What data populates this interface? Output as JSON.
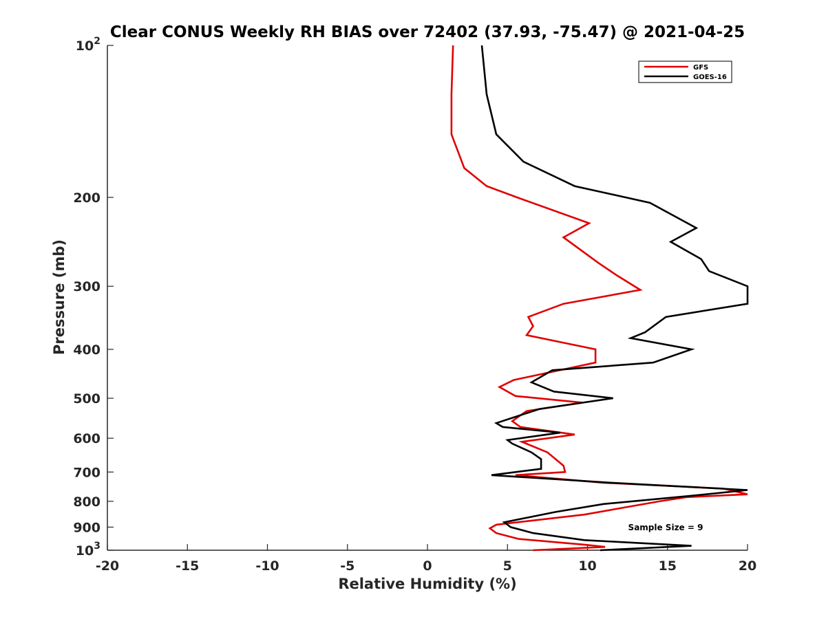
{
  "chart_data": {
    "type": "line",
    "title": "Clear CONUS Weekly RH BIAS over 72402 (37.93, -75.47) @ 2021-04-25",
    "xlabel": "Relative Humidity (%)",
    "ylabel": "Pressure (mb)",
    "xlim": [
      -20,
      20
    ],
    "ylim": [
      100,
      1000
    ],
    "yscale": "log",
    "yreversed": true,
    "grid": false,
    "legend_position": "top-right",
    "x_ticks": [
      "-20",
      "-15",
      "-10",
      "-5",
      "0",
      "5",
      "10",
      "15",
      "20"
    ],
    "y_ticks": [
      {
        "value": 100,
        "base": "10",
        "exp": "2"
      },
      {
        "value": 200,
        "label": "200"
      },
      {
        "value": 300,
        "label": "300"
      },
      {
        "value": 400,
        "label": "400"
      },
      {
        "value": 500,
        "label": "500"
      },
      {
        "value": 600,
        "label": "600"
      },
      {
        "value": 700,
        "label": "700"
      },
      {
        "value": 800,
        "label": "800"
      },
      {
        "value": 900,
        "label": "900"
      },
      {
        "value": 1000,
        "base": "10",
        "exp": "3"
      }
    ],
    "annotation": "Sample Size = 9",
    "series": [
      {
        "name": "GFS",
        "color": "#e00000",
        "points": [
          [
            1.6,
            100
          ],
          [
            1.5,
            125
          ],
          [
            1.5,
            150
          ],
          [
            2.3,
            175
          ],
          [
            3.7,
            190
          ],
          [
            5.6,
            200
          ],
          [
            10.1,
            225
          ],
          [
            8.5,
            240
          ],
          [
            10.7,
            270
          ],
          [
            11.8,
            285
          ],
          [
            13.3,
            305
          ],
          [
            8.5,
            325
          ],
          [
            6.3,
            345
          ],
          [
            6.6,
            360
          ],
          [
            6.2,
            375
          ],
          [
            10.5,
            400
          ],
          [
            10.5,
            425
          ],
          [
            5.4,
            460
          ],
          [
            4.5,
            475
          ],
          [
            5.5,
            495
          ],
          [
            9.7,
            510
          ],
          [
            6.2,
            530
          ],
          [
            5.3,
            555
          ],
          [
            5.8,
            570
          ],
          [
            9.2,
            590
          ],
          [
            5.9,
            610
          ],
          [
            7.5,
            640
          ],
          [
            8.5,
            680
          ],
          [
            8.6,
            700
          ],
          [
            5.5,
            710
          ],
          [
            11.0,
            735
          ],
          [
            18.5,
            755
          ],
          [
            20.0,
            775
          ],
          [
            16.2,
            785
          ],
          [
            14.5,
            800
          ],
          [
            9.8,
            850
          ],
          [
            4.3,
            890
          ],
          [
            3.9,
            905
          ],
          [
            4.3,
            925
          ],
          [
            5.7,
            950
          ],
          [
            9.8,
            975
          ],
          [
            11.1,
            985
          ],
          [
            6.6,
            1000
          ]
        ]
      },
      {
        "name": "GOES-16",
        "color": "#000000",
        "points": [
          [
            3.4,
            100
          ],
          [
            3.7,
            125
          ],
          [
            4.3,
            150
          ],
          [
            6.0,
            170
          ],
          [
            9.2,
            190
          ],
          [
            13.9,
            205
          ],
          [
            16.8,
            230
          ],
          [
            15.2,
            245
          ],
          [
            17.1,
            265
          ],
          [
            17.6,
            280
          ],
          [
            20.0,
            300
          ],
          [
            20.0,
            325
          ],
          [
            14.9,
            345
          ],
          [
            13.6,
            370
          ],
          [
            12.7,
            380
          ],
          [
            16.5,
            400
          ],
          [
            14.1,
            425
          ],
          [
            7.8,
            440
          ],
          [
            6.5,
            465
          ],
          [
            7.9,
            485
          ],
          [
            11.6,
            500
          ],
          [
            7.0,
            525
          ],
          [
            4.3,
            560
          ],
          [
            4.7,
            570
          ],
          [
            8.3,
            585
          ],
          [
            5.0,
            605
          ],
          [
            5.3,
            615
          ],
          [
            6.5,
            640
          ],
          [
            7.1,
            660
          ],
          [
            7.1,
            690
          ],
          [
            4.0,
            710
          ],
          [
            11.5,
            735
          ],
          [
            20.0,
            760
          ],
          [
            16.5,
            780
          ],
          [
            11.0,
            810
          ],
          [
            8.0,
            840
          ],
          [
            4.8,
            880
          ],
          [
            5.2,
            900
          ],
          [
            6.6,
            925
          ],
          [
            9.8,
            955
          ],
          [
            16.5,
            980
          ],
          [
            10.8,
            1000
          ]
        ]
      }
    ]
  }
}
